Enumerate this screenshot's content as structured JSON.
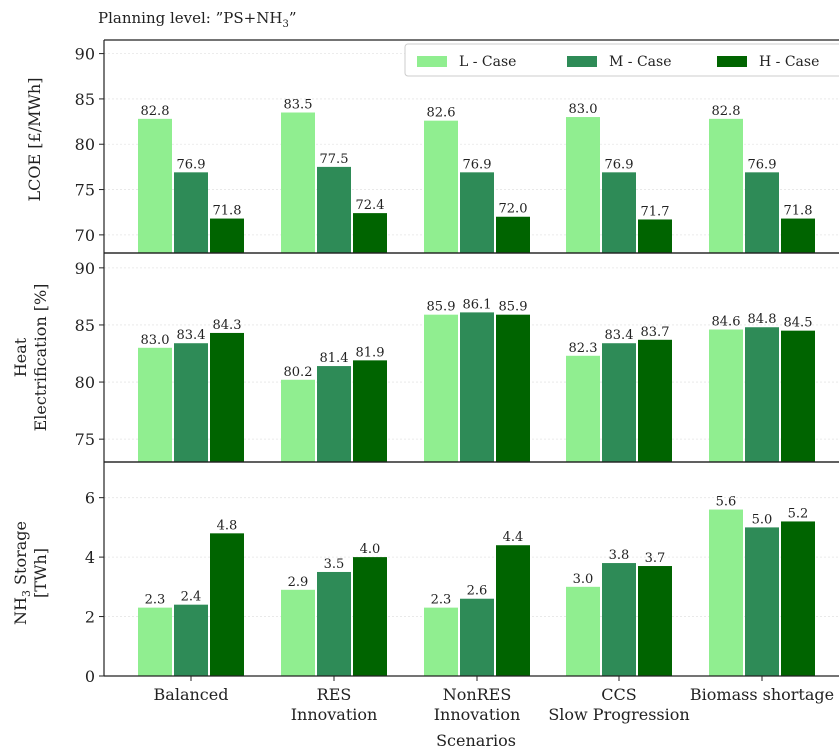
{
  "header": {
    "planning_prefix": "Planning level: ”PS+NH",
    "planning_sub": "3",
    "planning_suffix": "”"
  },
  "chart_data": {
    "type": "bar",
    "xlabel": "Scenarios",
    "categories": [
      [
        "Balanced"
      ],
      [
        "RES",
        "Innovation"
      ],
      [
        "NonRES",
        "Innovation"
      ],
      [
        "CCS",
        "Slow Progression"
      ],
      [
        "Biomass shortage"
      ]
    ],
    "legend": {
      "placement": "top-right",
      "entries": [
        "L - Case",
        "M - Case",
        "H - Case"
      ]
    },
    "colors": {
      "L - Case": "#90ee90",
      "M - Case": "#2e8b57",
      "H - Case": "#006400"
    },
    "panels": [
      {
        "ylabel": "LCOE [£/MWh]",
        "ylim": [
          68,
          91.5
        ],
        "yticks": [
          70,
          75,
          80,
          85,
          90
        ],
        "series": [
          {
            "name": "L - Case",
            "values": [
              82.8,
              83.5,
              82.6,
              83.0,
              82.8
            ],
            "labels": [
              "82.8",
              "83.5",
              "82.6",
              "83.0",
              "82.8"
            ]
          },
          {
            "name": "M - Case",
            "values": [
              76.9,
              77.5,
              76.9,
              76.9,
              76.9
            ],
            "labels": [
              "76.9",
              "77.5",
              "76.9",
              "76.9",
              "76.9"
            ]
          },
          {
            "name": "H - Case",
            "values": [
              71.8,
              72.4,
              72.0,
              71.7,
              71.8
            ],
            "labels": [
              "71.8",
              "72.4",
              "72.0",
              "71.7",
              "71.8"
            ]
          }
        ]
      },
      {
        "ylabel": "Heat Electrification [%]",
        "ylabel_lines": [
          "Heat",
          "Electrification [%]"
        ],
        "ylim": [
          73,
          91.3
        ],
        "yticks": [
          75,
          80,
          85,
          90
        ],
        "series": [
          {
            "name": "L - Case",
            "values": [
              83.0,
              80.2,
              85.9,
              82.3,
              84.6
            ],
            "labels": [
              "83.0",
              "80.2",
              "85.9",
              "82.3",
              "84.6"
            ]
          },
          {
            "name": "M - Case",
            "values": [
              83.4,
              81.4,
              86.1,
              83.4,
              84.8
            ],
            "labels": [
              "83.4",
              "81.4",
              "86.1",
              "83.4",
              "84.8"
            ]
          },
          {
            "name": "H - Case",
            "values": [
              84.3,
              81.9,
              85.9,
              83.7,
              84.5
            ],
            "labels": [
              "84.3",
              "81.9",
              "85.9",
              "83.7",
              "84.5"
            ]
          }
        ]
      },
      {
        "ylabel": "NH3 Storage [TWh]",
        "ylabel_line1_main": "NH",
        "ylabel_line1_sub": "3",
        "ylabel_line1_rest": " Storage",
        "ylabel_line2": "[TWh]",
        "ylim": [
          0,
          7.2
        ],
        "yticks": [
          0,
          2,
          4,
          6
        ],
        "series": [
          {
            "name": "L - Case",
            "values": [
              2.3,
              2.9,
              2.3,
              3.0,
              5.6
            ],
            "labels": [
              "2.3",
              "2.9",
              "2.3",
              "3.0",
              "5.6"
            ]
          },
          {
            "name": "M - Case",
            "values": [
              2.4,
              3.5,
              2.6,
              3.8,
              5.0
            ],
            "labels": [
              "2.4",
              "3.5",
              "2.6",
              "3.8",
              "5.0"
            ]
          },
          {
            "name": "H - Case",
            "values": [
              4.8,
              4.0,
              4.4,
              3.7,
              5.2
            ],
            "labels": [
              "4.8",
              "4.0",
              "4.4",
              "3.7",
              "5.2"
            ]
          }
        ]
      }
    ],
    "grid": true
  }
}
